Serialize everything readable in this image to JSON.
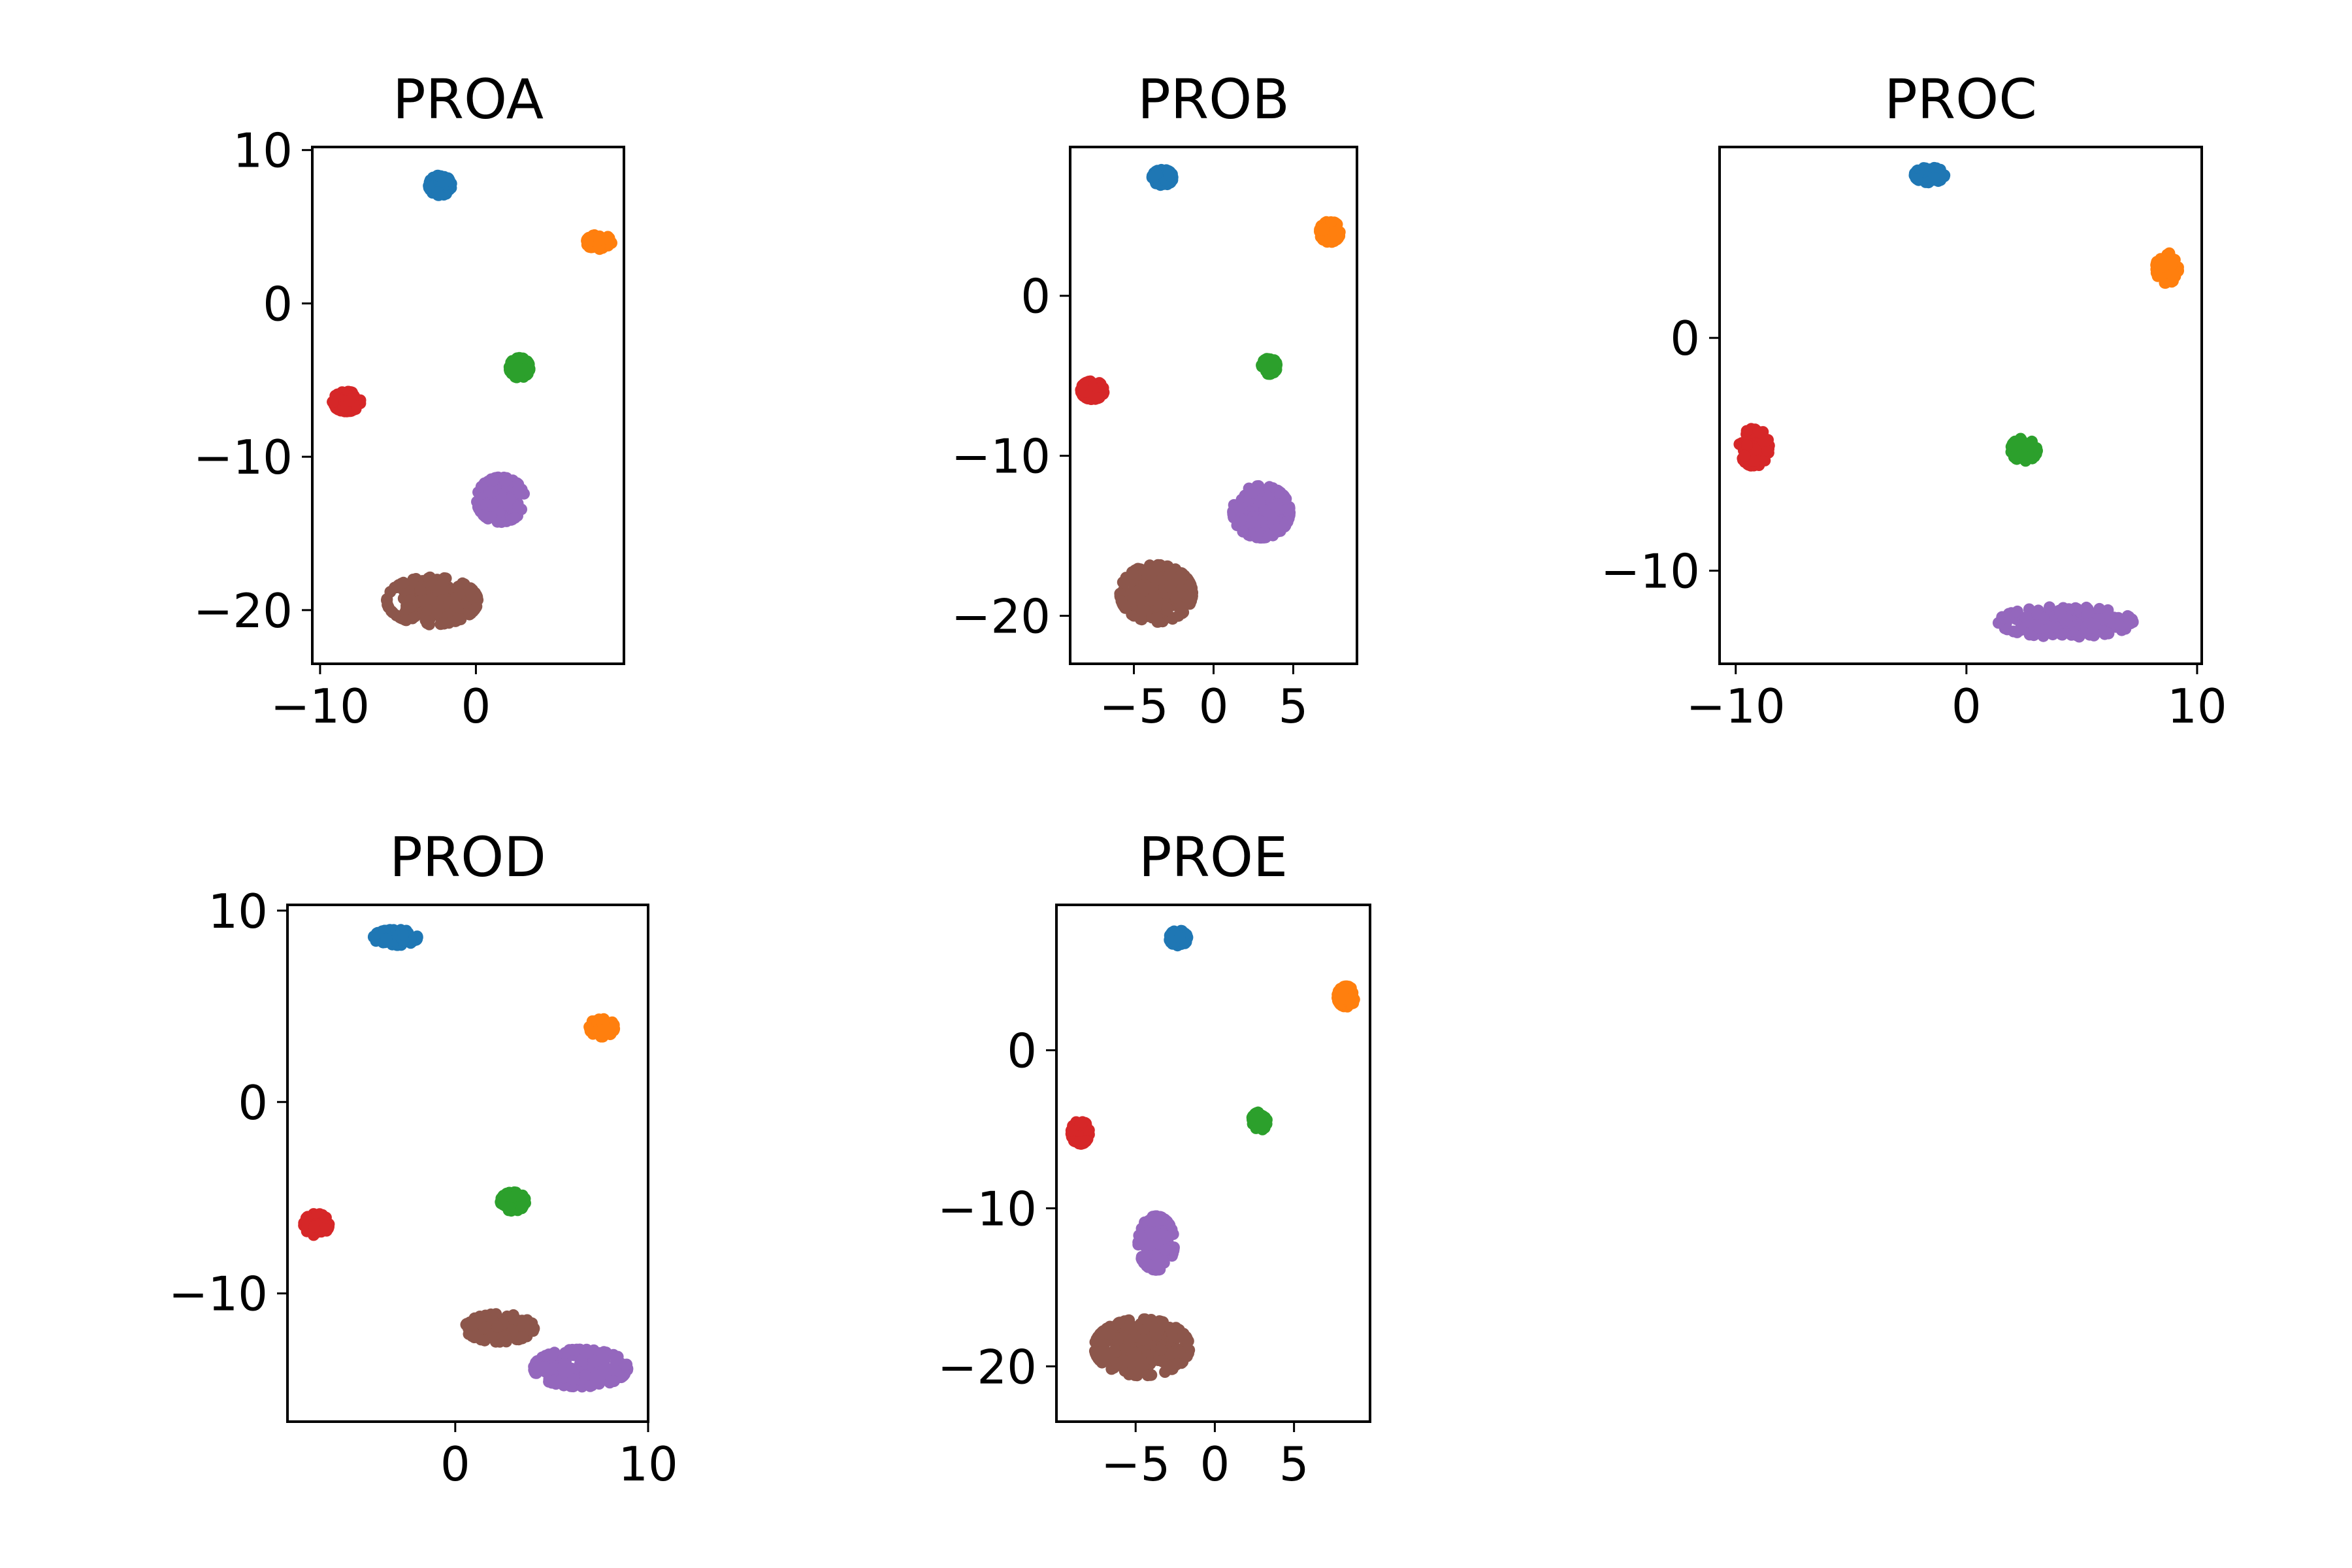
{
  "figure": {
    "background": "#ffffff"
  },
  "chart_data": [
    {
      "type": "scatter",
      "title": "PROA",
      "xlim": [
        -10.5,
        9.5
      ],
      "ylim": [
        -23.5,
        10.2
      ],
      "xticks": [
        -10,
        0
      ],
      "xtick_labels": [
        "−10",
        "0"
      ],
      "yticks": [
        10,
        0,
        -10,
        -20
      ],
      "ytick_labels": [
        "10",
        "0",
        "−10",
        "−20"
      ],
      "grid": false,
      "legend": "none",
      "series": [
        {
          "color": "#1f77b4",
          "center": [
            -2.3,
            7.7
          ],
          "spread": [
            0.9,
            0.8
          ]
        },
        {
          "color": "#ff7f0e",
          "center": [
            7.9,
            4.0
          ],
          "spread": [
            1.0,
            0.6
          ]
        },
        {
          "color": "#2ca02c",
          "center": [
            2.8,
            -4.2
          ],
          "spread": [
            0.8,
            0.8
          ]
        },
        {
          "color": "#d62728",
          "center": [
            -8.3,
            -6.4
          ],
          "spread": [
            1.1,
            0.8
          ]
        },
        {
          "color": "#9467bd",
          "center": [
            1.6,
            -12.8
          ],
          "spread": [
            1.9,
            1.8
          ]
        },
        {
          "color": "#8c564b",
          "center": [
            -2.8,
            -19.4
          ],
          "spread": [
            3.6,
            1.9
          ]
        }
      ]
    },
    {
      "type": "scatter",
      "title": "PROB",
      "xlim": [
        -9.0,
        9.0
      ],
      "ylim": [
        -23.0,
        9.3
      ],
      "xticks": [
        -5,
        0,
        5
      ],
      "xtick_labels": [
        "−5",
        "0",
        "5"
      ],
      "yticks": [
        0,
        -10,
        -20
      ],
      "ytick_labels": [
        "0",
        "−10",
        "−20"
      ],
      "grid": false,
      "legend": "none",
      "series": [
        {
          "color": "#1f77b4",
          "center": [
            -3.2,
            7.4
          ],
          "spread": [
            0.8,
            0.6
          ]
        },
        {
          "color": "#ff7f0e",
          "center": [
            7.3,
            4.0
          ],
          "spread": [
            0.8,
            0.8
          ]
        },
        {
          "color": "#2ca02c",
          "center": [
            3.5,
            -4.4
          ],
          "spread": [
            0.6,
            0.6
          ]
        },
        {
          "color": "#d62728",
          "center": [
            -7.6,
            -5.9
          ],
          "spread": [
            0.9,
            0.7
          ]
        },
        {
          "color": "#9467bd",
          "center": [
            3.0,
            -13.5
          ],
          "spread": [
            2.2,
            2.0
          ]
        },
        {
          "color": "#8c564b",
          "center": [
            -3.6,
            -18.6
          ],
          "spread": [
            2.8,
            2.2
          ]
        }
      ]
    },
    {
      "type": "scatter",
      "title": "PROC",
      "xlim": [
        -10.7,
        10.2
      ],
      "ylim": [
        -14.0,
        8.2
      ],
      "xticks": [
        -10,
        0,
        10
      ],
      "xtick_labels": [
        "−10",
        "0",
        "10"
      ],
      "yticks": [
        0,
        -10
      ],
      "ytick_labels": [
        "0",
        "−10"
      ],
      "grid": false,
      "legend": "none",
      "series": [
        {
          "color": "#1f77b4",
          "center": [
            -1.6,
            7.0
          ],
          "spread": [
            0.8,
            0.4
          ]
        },
        {
          "color": "#ff7f0e",
          "center": [
            8.7,
            3.0
          ],
          "spread": [
            0.6,
            0.8
          ]
        },
        {
          "color": "#2ca02c",
          "center": [
            2.5,
            -4.8
          ],
          "spread": [
            0.7,
            0.6
          ]
        },
        {
          "color": "#d62728",
          "center": [
            -9.2,
            -4.7
          ],
          "spread": [
            0.8,
            1.0
          ]
        },
        {
          "color": "#9467bd",
          "center": [
            4.3,
            -12.2
          ],
          "spread": [
            3.6,
            0.8
          ]
        }
      ]
    },
    {
      "type": "scatter",
      "title": "PROD",
      "xlim": [
        -8.7,
        10.0
      ],
      "ylim": [
        -16.7,
        10.3
      ],
      "xticks": [
        0,
        10
      ],
      "xtick_labels": [
        "0",
        "10"
      ],
      "yticks": [
        10,
        0,
        -10
      ],
      "ytick_labels": [
        "10",
        "0",
        "−10"
      ],
      "grid": false,
      "legend": "none",
      "series": [
        {
          "color": "#1f77b4",
          "center": [
            -3.1,
            8.6
          ],
          "spread": [
            1.4,
            0.5
          ]
        },
        {
          "color": "#ff7f0e",
          "center": [
            7.6,
            3.9
          ],
          "spread": [
            0.8,
            0.6
          ]
        },
        {
          "color": "#2ca02c",
          "center": [
            3.0,
            -5.2
          ],
          "spread": [
            0.8,
            0.6
          ]
        },
        {
          "color": "#d62728",
          "center": [
            -7.2,
            -6.4
          ],
          "spread": [
            0.8,
            0.7
          ]
        },
        {
          "color": "#9467bd",
          "center": [
            6.5,
            -13.9
          ],
          "spread": [
            3.0,
            1.2
          ]
        },
        {
          "color": "#8c564b",
          "center": [
            2.3,
            -11.8
          ],
          "spread": [
            2.2,
            0.9
          ]
        }
      ]
    },
    {
      "type": "scatter",
      "title": "PROE",
      "xlim": [
        -10.0,
        9.8
      ],
      "ylim": [
        -23.5,
        9.2
      ],
      "xticks": [
        -5,
        0,
        5
      ],
      "xtick_labels": [
        "−5",
        "0",
        "5"
      ],
      "yticks": [
        0,
        -10,
        -20
      ],
      "ytick_labels": [
        "0",
        "−10",
        "−20"
      ],
      "grid": false,
      "legend": "none",
      "series": [
        {
          "color": "#1f77b4",
          "center": [
            -2.3,
            7.1
          ],
          "spread": [
            0.7,
            0.6
          ]
        },
        {
          "color": "#ff7f0e",
          "center": [
            8.3,
            3.4
          ],
          "spread": [
            0.7,
            0.8
          ]
        },
        {
          "color": "#2ca02c",
          "center": [
            2.8,
            -4.5
          ],
          "spread": [
            0.6,
            0.7
          ]
        },
        {
          "color": "#d62728",
          "center": [
            -8.5,
            -5.2
          ],
          "spread": [
            0.7,
            0.9
          ]
        },
        {
          "color": "#9467bd",
          "center": [
            -3.7,
            -12.2
          ],
          "spread": [
            1.4,
            2.1
          ]
        },
        {
          "color": "#8c564b",
          "center": [
            -4.6,
            -18.8
          ],
          "spread": [
            3.7,
            2.2
          ]
        }
      ]
    }
  ]
}
